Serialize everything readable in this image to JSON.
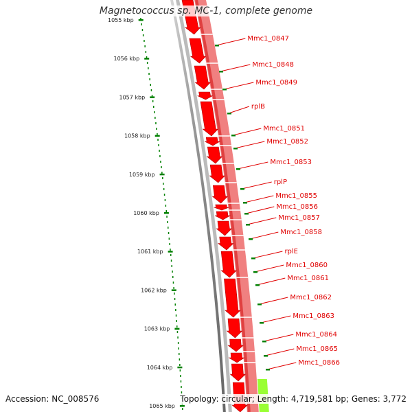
{
  "title": "Magnetococcus sp. MC-1, complete genome",
  "footer": {
    "accession": "Accession: NC_008576",
    "summary": "Topology: circular; Length: 4,719,581 bp; Genes: 3,772"
  },
  "colors": {
    "cds_forward": "#ff0000",
    "cds_reverse": "#f08080",
    "rna": "#99ff33",
    "ruler": "#008000",
    "label": "#e00000"
  },
  "ruler_labels": [
    "1055 kbp",
    "1056 kbp",
    "1057 kbp",
    "1058 kbp",
    "1059 kbp",
    "1060 kbp",
    "1061 kbp",
    "1062 kbp",
    "1063 kbp",
    "1064 kbp",
    "1065 kbp"
  ],
  "gene_labels": [
    "Mmc1_0847",
    "Mmc1_0848",
    "Mmc1_0849",
    "rplB",
    "Mmc1_0851",
    "Mmc1_0852",
    "Mmc1_0853",
    "rplP",
    "Mmc1_0855",
    "Mmc1_0856",
    "Mmc1_0857",
    "Mmc1_0858",
    "rplE",
    "Mmc1_0860",
    "Mmc1_0861",
    "Mmc1_0862",
    "Mmc1_0863",
    "Mmc1_0864",
    "Mmc1_0865",
    "Mmc1_0866"
  ]
}
